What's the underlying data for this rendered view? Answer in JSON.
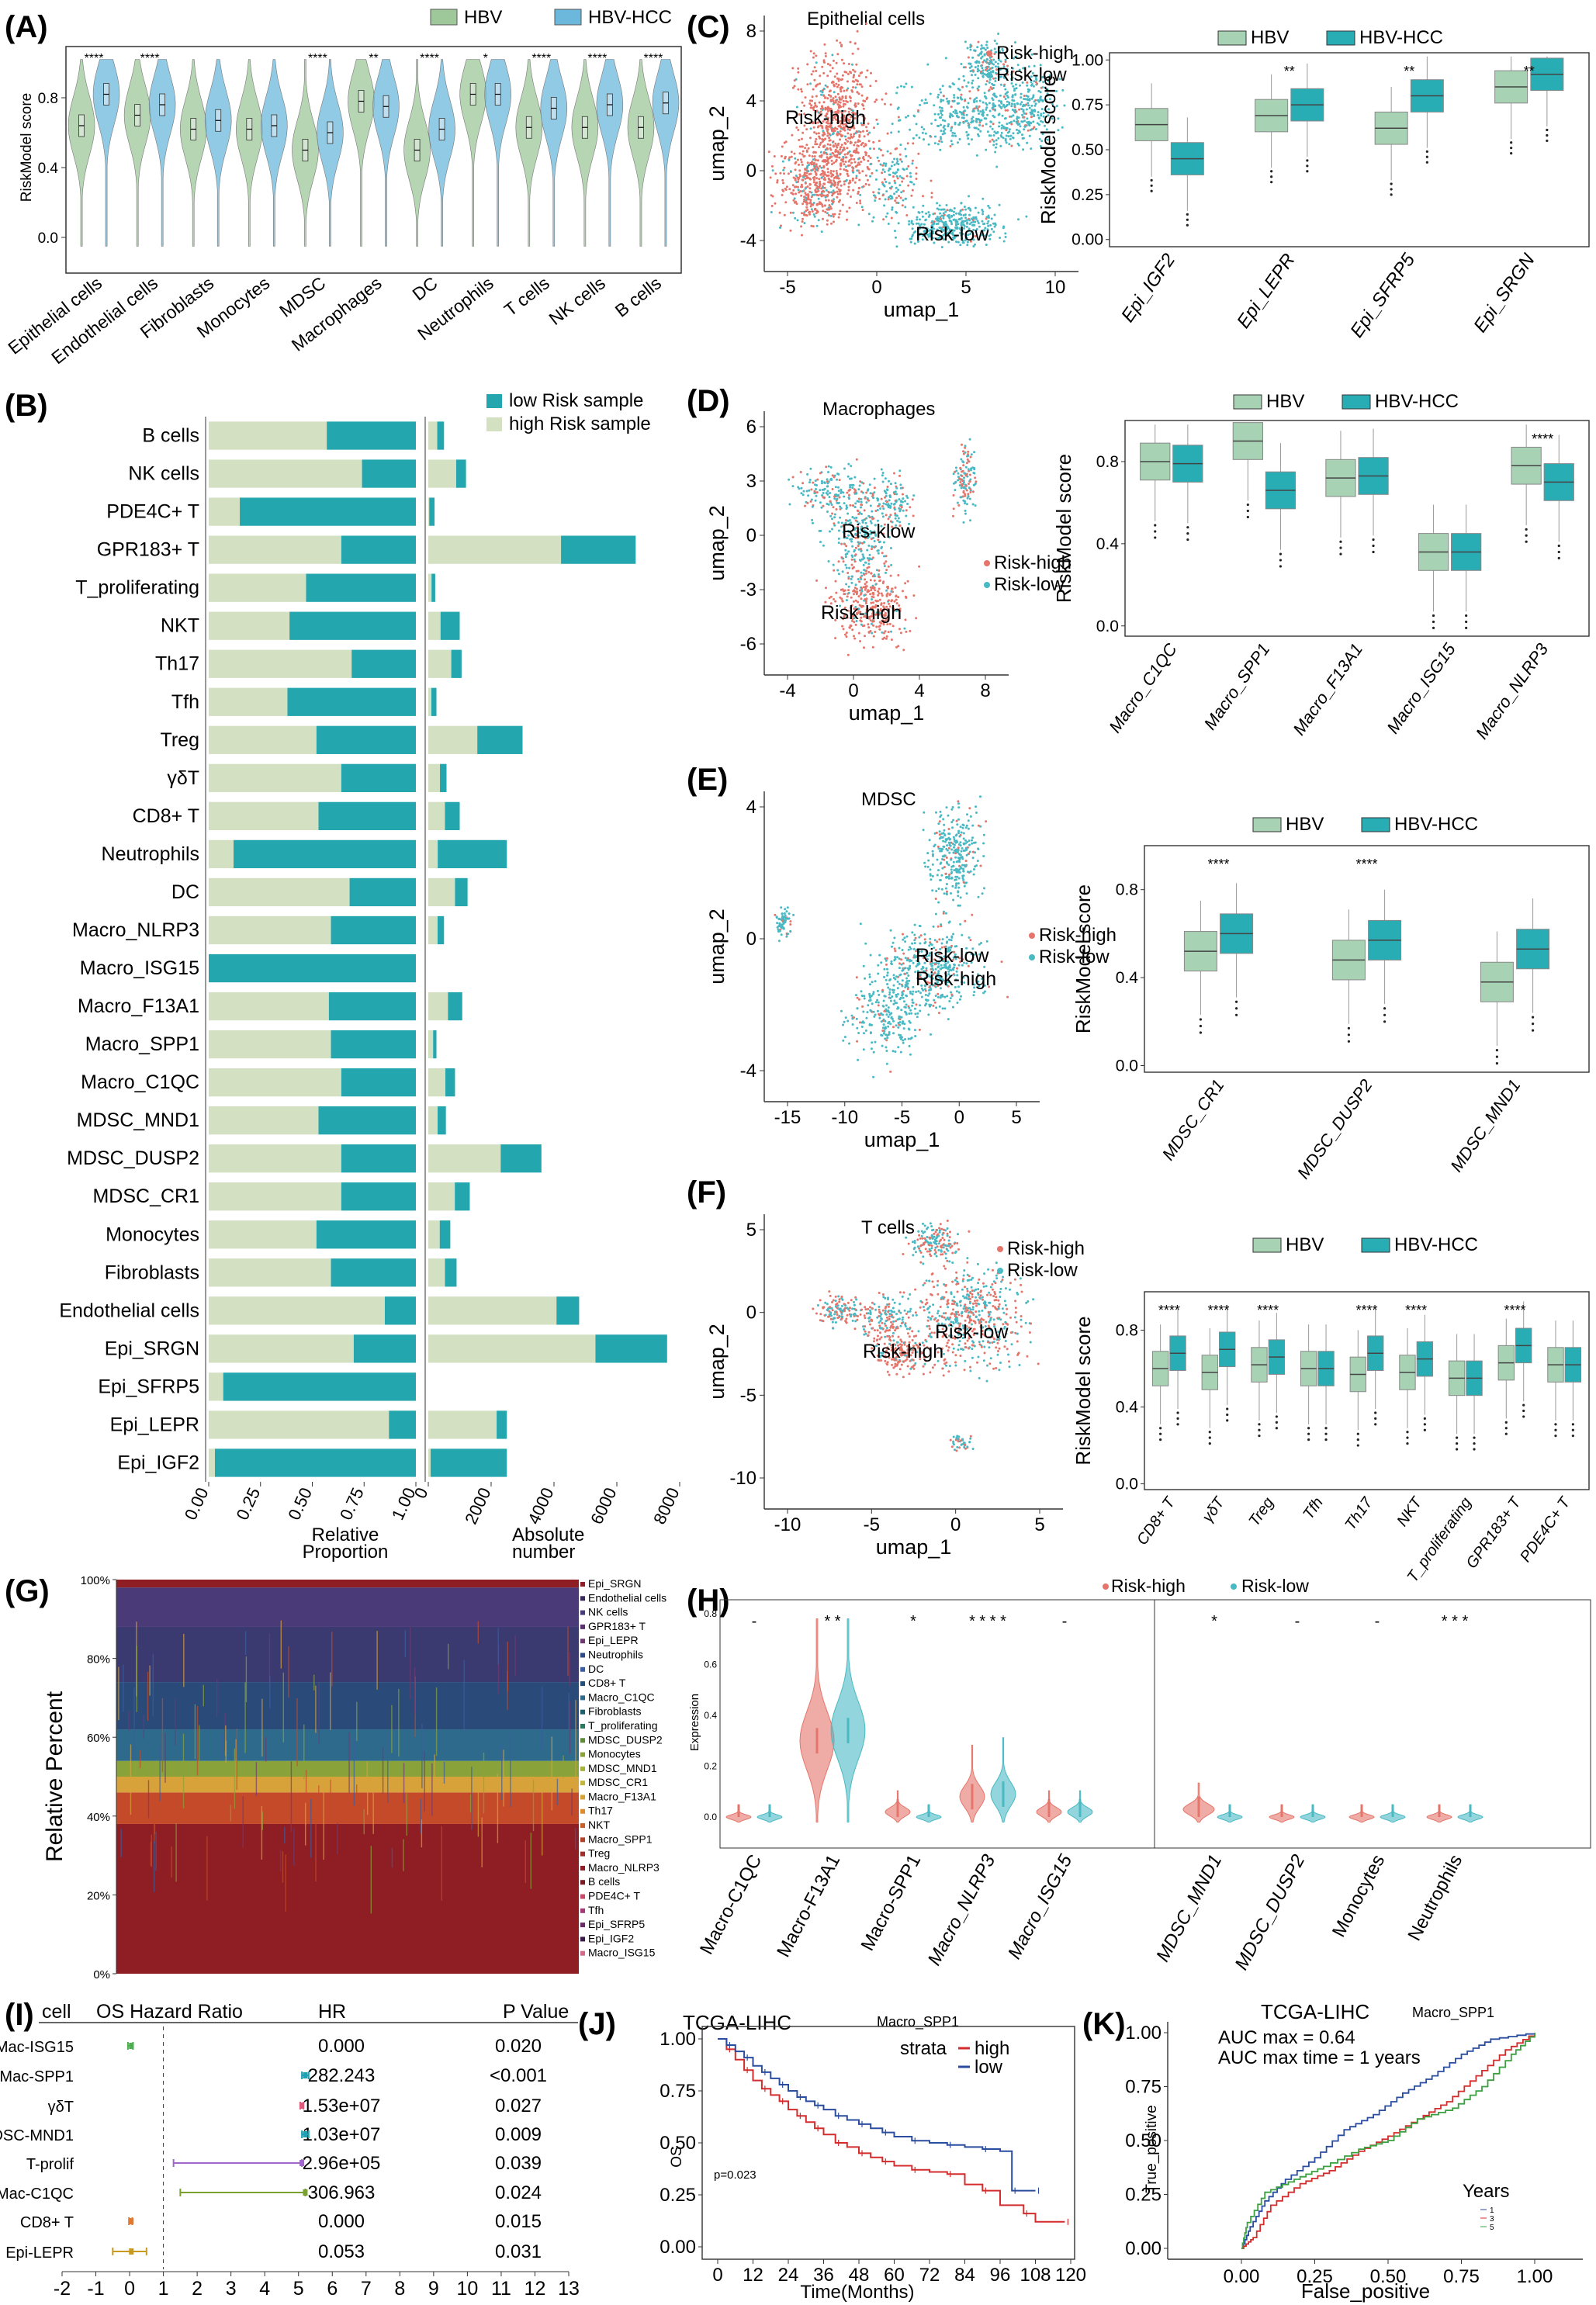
{
  "colors": {
    "hbv": "#9ec79a",
    "hbv_fill": "#a8d2b4",
    "hcc": "#6cb8dc",
    "hcc_fill": "#28adb4",
    "risk_high": "#e5756a",
    "risk_low": "#49b9c4",
    "beige": "#d4e0c2",
    "teal": "#23a6ad",
    "km_high": "#d42c2c",
    "km_low": "#2a4da0"
  },
  "panels": {
    "A": {
      "label": "(A)",
      "legend": [
        "HBV",
        "HBV-HCC"
      ],
      "ylabel": "RiskModel score",
      "yticks": [
        "0.0",
        "0.4",
        "0.8"
      ],
      "categories": [
        "Epithelial cells",
        "Endothelial cells",
        "Fibroblasts",
        "Monocytes",
        "MDSC",
        "Macrophages",
        "DC",
        "Neutrophils",
        "T cells",
        "NK cells",
        "B cells"
      ],
      "sig": [
        "****",
        "****",
        "",
        "",
        "****",
        "**",
        "****",
        "*",
        "****",
        "****",
        "****"
      ],
      "medians_hbv": [
        0.64,
        0.7,
        0.62,
        0.62,
        0.5,
        0.78,
        0.5,
        0.82,
        0.63,
        0.63,
        0.63
      ],
      "medians_hcc": [
        0.82,
        0.76,
        0.67,
        0.64,
        0.6,
        0.75,
        0.62,
        0.82,
        0.74,
        0.76,
        0.77
      ]
    },
    "B": {
      "label": "(B)",
      "legend": [
        "low Risk sample",
        "high Risk sample"
      ],
      "rows": [
        "B cells",
        "NK cells",
        "PDE4C+ T",
        "GPR183+ T",
        "T_proliferating",
        "NKT",
        "Th17",
        "Tfh",
        "Treg",
        "γδT",
        "CD8+ T",
        "Neutrophils",
        "DC",
        "Macro_NLRP3",
        "Macro_ISG15",
        "Macro_F13A1",
        "Macro_SPP1",
        "Macro_C1QC",
        "MDSC_MND1",
        "MDSC_DUSP2",
        "MDSC_CR1",
        "Monocytes",
        "Fibroblasts",
        "Endothelial cells",
        "Epi_SRGN",
        "Epi_SFRP5",
        "Epi_LEPR",
        "Epi_IGF2"
      ],
      "high_prop": [
        0.57,
        0.74,
        0.15,
        0.64,
        0.47,
        0.39,
        0.69,
        0.38,
        0.52,
        0.64,
        0.53,
        0.12,
        0.68,
        0.59,
        0.0,
        0.58,
        0.59,
        0.64,
        0.53,
        0.64,
        0.64,
        0.52,
        0.59,
        0.85,
        0.7,
        0.07,
        0.87,
        0.03
      ],
      "totals": [
        500,
        1200,
        200,
        6600,
        220,
        1000,
        1060,
        260,
        3000,
        580,
        1000,
        2500,
        1250,
        500,
        0,
        1080,
        260,
        850,
        560,
        3600,
        1320,
        700,
        900,
        4800,
        7600,
        0,
        2500,
        2500
      ],
      "prop_ticks": [
        "0.00",
        "0.25",
        "0.50",
        "0.75",
        "1.00"
      ],
      "abs_ticks": [
        "0",
        "2000",
        "4000",
        "6000",
        "8000"
      ],
      "prop_label": [
        "Relative",
        "Proportion"
      ],
      "abs_label": [
        "Absolute",
        "number"
      ]
    },
    "C": {
      "label": "(C)",
      "umap_title": "Epithelial cells",
      "umap_legend": [
        "Risk-high",
        "Risk-low"
      ],
      "umap_annots": [
        "Risk-high",
        "Risk-low"
      ],
      "xticks": [
        "-5",
        "0",
        "5",
        "10"
      ],
      "yticks": [
        "8",
        "4",
        "0",
        "-4"
      ],
      "xlabel": "umap_1",
      "ylabel": "umap_2",
      "box_legend": [
        "HBV",
        "HBV-HCC"
      ],
      "box_ylabel": "RiskModel score",
      "box_yticks": [
        "0.00",
        "0.25",
        "0.50",
        "0.75",
        "1.00"
      ],
      "box_groups": [
        "Epi_IGF2",
        "Epi_LEPR",
        "Epi_SFRP5",
        "Epi_SRGN"
      ],
      "box_sig": [
        "",
        "**",
        "**",
        "**"
      ],
      "box_med_hbv": [
        0.64,
        0.69,
        0.62,
        0.85
      ],
      "box_med_hcc": [
        0.45,
        0.75,
        0.8,
        0.92
      ]
    },
    "D": {
      "label": "(D)",
      "umap_title": "Macrophages",
      "umap_legend": [
        "Risk-high",
        "Risk-low"
      ],
      "umap_annots": [
        "Ris-klow",
        "Risk-high"
      ],
      "xticks": [
        "-4",
        "0",
        "4",
        "8"
      ],
      "yticks": [
        "6",
        "3",
        "0",
        "-3",
        "-6"
      ],
      "xlabel": "umap_1",
      "ylabel": "umap_2",
      "box_legend": [
        "HBV",
        "HBV-HCC"
      ],
      "box_ylabel": "RiskModel score",
      "box_yticks": [
        "0.0",
        "0.4",
        "0.8"
      ],
      "box_groups": [
        "Macro_C1QC",
        "Macro_SPP1",
        "Macro_F13A1",
        "Macro_ISG15",
        "Macro_NLRP3"
      ],
      "box_sig": [
        "",
        "",
        "",
        "",
        "****"
      ],
      "box_med_hbv": [
        0.8,
        0.9,
        0.72,
        0.36,
        0.78
      ],
      "box_med_hcc": [
        0.79,
        0.66,
        0.73,
        0.36,
        0.7
      ]
    },
    "E": {
      "label": "(E)",
      "umap_title": "MDSC",
      "umap_legend": [
        "Risk-high",
        "Risk-low"
      ],
      "umap_annots": [
        "Risk-low",
        "Risk-high"
      ],
      "xticks": [
        "-15",
        "-10",
        "-5",
        "0",
        "5"
      ],
      "yticks": [
        "4",
        "0",
        "-4"
      ],
      "xlabel": "umap_1",
      "ylabel": "umap_2",
      "box_legend": [
        "HBV",
        "HBV-HCC"
      ],
      "box_ylabel": "RiskModel score",
      "box_yticks": [
        "0.0",
        "0.4",
        "0.8"
      ],
      "box_groups": [
        "MDSC_CR1",
        "MDSC_DUSP2",
        "MDSC_MND1"
      ],
      "box_sig": [
        "****",
        "****",
        ""
      ],
      "box_med_hbv": [
        0.52,
        0.48,
        0.38
      ],
      "box_med_hcc": [
        0.6,
        0.57,
        0.53
      ]
    },
    "F": {
      "label": "(F)",
      "umap_title": "T cells",
      "umap_legend": [
        "Risk-high",
        "Risk-low"
      ],
      "umap_annots": [
        "Risk-high",
        "Risk-low"
      ],
      "xticks": [
        "-10",
        "-5",
        "0",
        "5"
      ],
      "yticks": [
        "5",
        "0",
        "-5",
        "-10"
      ],
      "xlabel": "umap_1",
      "ylabel": "umap_2",
      "box_legend": [
        "HBV",
        "HBV-HCC"
      ],
      "box_ylabel": "RiskModel score",
      "box_yticks": [
        "0.0",
        "0.4",
        "0.8"
      ],
      "box_groups": [
        "CD8+ T",
        "γδT",
        "Treg",
        "Tfh",
        "Th17",
        "NKT",
        "T_proliferating",
        "GPR183+ T",
        "PDE4C+ T"
      ],
      "box_sig": [
        "****",
        "****",
        "****",
        "",
        "****",
        "****",
        "",
        "****",
        ""
      ],
      "box_med_hbv": [
        0.6,
        0.58,
        0.62,
        0.6,
        0.57,
        0.58,
        0.55,
        0.63,
        0.62
      ],
      "box_med_hcc": [
        0.68,
        0.7,
        0.66,
        0.6,
        0.68,
        0.65,
        0.55,
        0.72,
        0.62
      ]
    },
    "G": {
      "label": "(G)",
      "ylabel": "Relative Percent",
      "yticks": [
        "0%",
        "20%",
        "40%",
        "60%",
        "80%",
        "100%"
      ],
      "legend": [
        "Epi_SRGN",
        "Endothelial cells",
        "NK cells",
        "GPR183+ T",
        "Epi_LEPR",
        "Neutrophils",
        "DC",
        "CD8+ T",
        "Macro_C1QC",
        "Fibroblasts",
        "T_proliferating",
        "MDSC_DUSP2",
        "Monocytes",
        "MDSC_MND1",
        "MDSC_CR1",
        "Macro_F13A1",
        "Th17",
        "NKT",
        "Macro_SPP1",
        "Treg",
        "Macro_NLRP3",
        "B cells",
        "PDE4C+ T",
        "Tfh",
        "Epi_SFRP5",
        "Epi_IGF2",
        "Macro_ISG15"
      ],
      "legend_colors": [
        "#8f1d24",
        "#3a2a5c",
        "#4a3a7a",
        "#5e2f6e",
        "#6f3a72",
        "#2c4a86",
        "#3b5ea0",
        "#1f4f7a",
        "#2e6a8c",
        "#1e5f6f",
        "#2c7a5e",
        "#5e8a3a",
        "#8aa23a",
        "#a6b23a",
        "#c4b63a",
        "#d8a23a",
        "#e08a2e",
        "#c8602a",
        "#b2422a",
        "#9e2e2a",
        "#8e1e24",
        "#7a1a22",
        "#c84a6a",
        "#a23a7a",
        "#6a2a6a",
        "#3a1a4a",
        "#d46a8a"
      ]
    },
    "H": {
      "label": "(H)",
      "legend": [
        "Risk-high",
        "Risk-low"
      ],
      "ylabel": "Expression",
      "yticks": [
        "0.0",
        "0.2",
        "0.4",
        "0.6",
        "0.8"
      ],
      "groups": [
        "Macro-C1QC",
        "Macro-F13A1",
        "Macro-SPP1",
        "Macro_NLRP3",
        "Macro_ISG15",
        "MDSC_MND1",
        "MDSC_DUSP2",
        "Monocytes",
        "Neutrophils"
      ],
      "sig": [
        "-",
        "* *",
        "*",
        "* * * *",
        "-",
        "*",
        "-",
        "-",
        "* * *"
      ],
      "med_high": [
        0.0,
        0.3,
        0.02,
        0.08,
        0.02,
        0.03,
        0.0,
        0.0,
        0.0
      ],
      "med_low": [
        0.0,
        0.34,
        0.0,
        0.09,
        0.02,
        0.0,
        0.0,
        0.0,
        0.0
      ]
    },
    "I": {
      "label": "(I)",
      "headers": [
        "cell",
        "OS Hazard Ratio",
        "HR",
        "P Value"
      ],
      "rows": [
        {
          "cell": "Mac-ISG15",
          "hr": "0.000",
          "p": "0.020"
        },
        {
          "cell": "Mac-SPP1",
          "hr": "282.243",
          "p": "<0.001"
        },
        {
          "cell": "γδT",
          "hr": "1.53e+07",
          "p": "0.027"
        },
        {
          "cell": "MDSC-MND1",
          "hr": "1.03e+07",
          "p": "0.009"
        },
        {
          "cell": "T-prolif",
          "hr": "2.96e+05",
          "p": "0.039"
        },
        {
          "cell": "Mac-C1QC",
          "hr": "306.963",
          "p": "0.024"
        },
        {
          "cell": "CD8+ T",
          "hr": "0.000",
          "p": "0.015"
        },
        {
          "cell": "Epi-LEPR",
          "hr": "0.053",
          "p": "0.031"
        }
      ],
      "forest_est": [
        0.05,
        5.2,
        5.1,
        5.2,
        5.1,
        5.2,
        0.05,
        0.05
      ],
      "forest_lo": [
        -0.05,
        5.1,
        5.05,
        5.1,
        1.3,
        1.5,
        -0.02,
        -0.5
      ],
      "forest_hi": [
        0.1,
        5.3,
        5.15,
        5.3,
        5.1,
        5.2,
        0.08,
        0.5
      ],
      "forest_colors": [
        "#4caf50",
        "#1ba3b5",
        "#e0587a",
        "#1ba3b5",
        "#a066cc",
        "#7aa030",
        "#e07a30",
        "#c89a20"
      ],
      "xticks": [
        "-2",
        "-1",
        "0",
        "1",
        "2",
        "3",
        "4",
        "5",
        "6",
        "7",
        "8",
        "9",
        "10",
        "11",
        "12",
        "13"
      ]
    },
    "J": {
      "label": "(J)",
      "title": "TCGA-LIHC",
      "subtitle": "Macro_SPP1",
      "strata_label": "strata",
      "strata": [
        "high",
        "low"
      ],
      "ylabel": "OS",
      "xlabel": "Time(Months)",
      "yticks": [
        "0.00",
        "0.25",
        "0.50",
        "0.75",
        "1.00"
      ],
      "xticks": [
        "0",
        "12",
        "24",
        "36",
        "48",
        "60",
        "72",
        "84",
        "96",
        "108",
        "120"
      ],
      "pval": "p=0.023",
      "high_t": [
        0,
        3,
        6,
        9,
        12,
        15,
        18,
        21,
        24,
        27,
        30,
        33,
        36,
        40,
        44,
        48,
        52,
        56,
        60,
        66,
        72,
        78,
        84,
        90,
        96,
        104,
        108,
        118
      ],
      "high_s": [
        1.0,
        0.95,
        0.9,
        0.85,
        0.8,
        0.76,
        0.73,
        0.7,
        0.66,
        0.63,
        0.6,
        0.57,
        0.54,
        0.5,
        0.48,
        0.45,
        0.43,
        0.41,
        0.39,
        0.37,
        0.36,
        0.35,
        0.3,
        0.27,
        0.2,
        0.16,
        0.12,
        0.12
      ],
      "low_t": [
        0,
        3,
        6,
        9,
        12,
        15,
        18,
        21,
        24,
        27,
        30,
        33,
        36,
        40,
        44,
        48,
        52,
        56,
        60,
        66,
        72,
        78,
        84,
        90,
        96,
        100,
        104,
        108
      ],
      "low_s": [
        1.0,
        0.97,
        0.94,
        0.91,
        0.87,
        0.84,
        0.81,
        0.78,
        0.75,
        0.72,
        0.7,
        0.68,
        0.66,
        0.63,
        0.61,
        0.59,
        0.57,
        0.55,
        0.53,
        0.51,
        0.5,
        0.49,
        0.48,
        0.47,
        0.46,
        0.27,
        0.27,
        0.27
      ]
    },
    "K": {
      "label": "(K)",
      "title": "TCGA-LIHC",
      "subtitle": "Macro_SPP1",
      "auc": "AUC max = 0.64",
      "auc_time": "AUC max time = 1 years",
      "ylabel": "True_positive",
      "xlabel": "False_positive",
      "ticks": [
        "0.00",
        "0.25",
        "0.50",
        "0.75",
        "1.00"
      ],
      "years_title": "Years",
      "years": [
        "1",
        "3",
        "5"
      ],
      "roc_colors": [
        "#2a4da0",
        "#d42c2c",
        "#3aa040"
      ]
    }
  }
}
